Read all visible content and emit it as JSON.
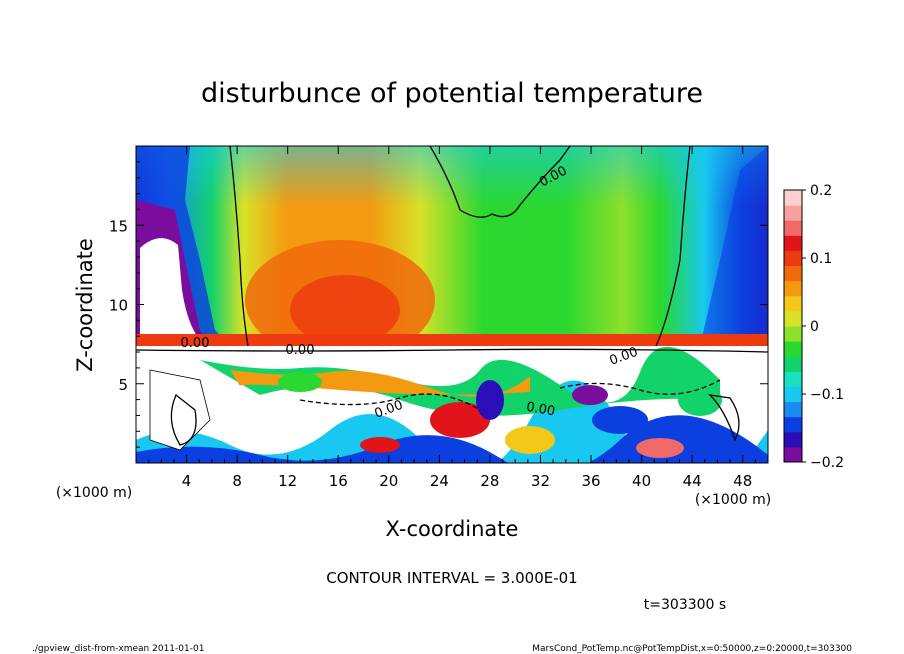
{
  "chart_data": {
    "type": "heatmap",
    "title": "disturbunce of potential temperature",
    "xlabel": "X-coordinate",
    "ylabel": "Z-coordinate",
    "x_unit_left": "(×1000 m)",
    "x_unit_right": "(×1000 m)",
    "xlim": [
      0,
      50
    ],
    "ylim": [
      0,
      20
    ],
    "x_ticks": [
      4,
      8,
      12,
      16,
      20,
      24,
      28,
      32,
      36,
      40,
      44,
      48
    ],
    "y_ticks": [
      5,
      10,
      15
    ],
    "colorbar": {
      "range": [
        -0.2,
        0.2
      ],
      "tick_values": [
        0.2,
        0.1,
        0,
        -0.1,
        -0.2
      ],
      "tick_labels": [
        "0.2",
        "0.1",
        "0",
        "−0.1",
        "−0.2"
      ],
      "colors": [
        "#7a0d9e",
        "#2a0fb8",
        "#0c3fe0",
        "#1a8cf0",
        "#18c8f0",
        "#18e0c0",
        "#12d26a",
        "#2ad830",
        "#8ee02a",
        "#d8e228",
        "#f4c818",
        "#f49a10",
        "#f06a0c",
        "#ee3a10",
        "#e0141a",
        "#f06a6a",
        "#f7a0a0",
        "#fbd0d0"
      ]
    },
    "contour_labels": [
      "0.00",
      "0.00",
      "0.00",
      "0.00",
      "0.00",
      "0.00"
    ],
    "contour_interval": "CONTOUR INTERVAL = 3.000E-01",
    "time": "t=303300 s"
  },
  "footer": {
    "left": "./gpview_dist-from-xmean   2011-01-01",
    "right": "MarsCond_PotTemp.nc@PotTempDist,x=0:50000,z=0:20000,t=303300"
  }
}
